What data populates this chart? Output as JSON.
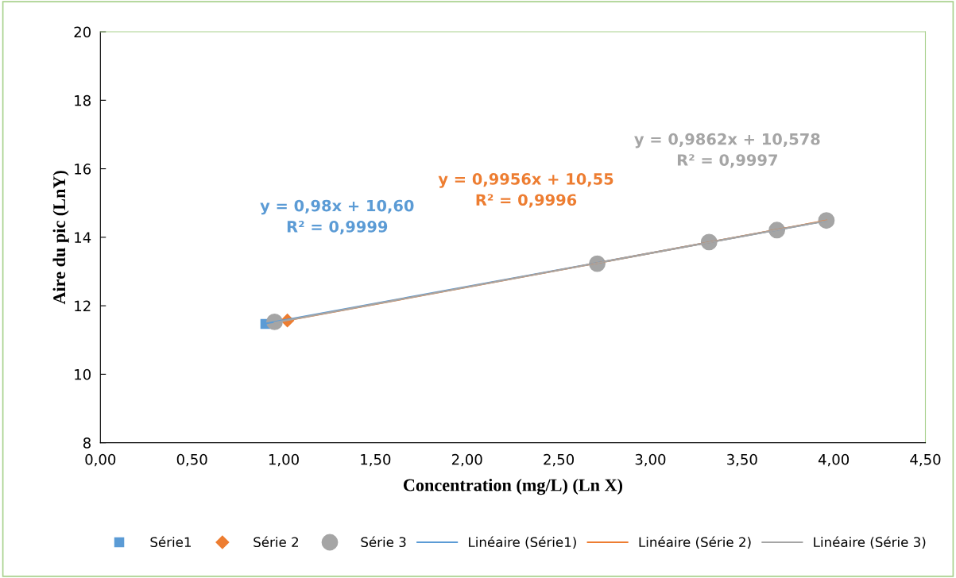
{
  "chart_data": {
    "type": "scatter",
    "xlabel": "Concentration (mg/L) (Ln X)",
    "ylabel": "Aire du pic (LnY)",
    "xlim": [
      0,
      4.5
    ],
    "ylim": [
      8,
      20
    ],
    "xticks": [
      {
        "value": 0,
        "label": "0,00"
      },
      {
        "value": 0.5,
        "label": "0,50"
      },
      {
        "value": 1,
        "label": "1,00"
      },
      {
        "value": 1.5,
        "label": "1,50"
      },
      {
        "value": 2,
        "label": "2,00"
      },
      {
        "value": 2.5,
        "label": "2,50"
      },
      {
        "value": 3,
        "label": "3,00"
      },
      {
        "value": 3.5,
        "label": "3,50"
      },
      {
        "value": 4,
        "label": "4,00"
      },
      {
        "value": 4.5,
        "label": "4,50"
      }
    ],
    "yticks": [
      8,
      10,
      12,
      14,
      16,
      18,
      20
    ],
    "grid": false,
    "legend": "bottom",
    "series": [
      {
        "name": "Série1",
        "color": "#5b9bd5",
        "marker": "square",
        "x": [
          0.9
        ],
        "values": [
          11.47
        ]
      },
      {
        "name": "Série 2",
        "color": "#ed7d31",
        "marker": "diamond",
        "x": [
          1.02
        ],
        "values": [
          11.57
        ]
      },
      {
        "name": "Série 3",
        "color": "#a5a5a5",
        "marker": "circle",
        "x": [
          0.95,
          2.71,
          3.32,
          3.69,
          3.96
        ],
        "values": [
          11.53,
          13.23,
          13.86,
          14.21,
          14.49
        ]
      },
      {
        "name": "Linéaire (Série1)",
        "type": "line",
        "color": "#5b9bd5",
        "x": [
          0.9,
          3.96
        ],
        "values": [
          11.48,
          14.48
        ]
      },
      {
        "name": "Linéaire (Série 2)",
        "type": "line",
        "color": "#ed7d31",
        "x": [
          1.02,
          3.96
        ],
        "values": [
          11.57,
          14.49
        ]
      },
      {
        "name": "Linéaire (Série 3)",
        "type": "line",
        "color": "#a5a5a5",
        "x": [
          0.95,
          3.96
        ],
        "values": [
          11.51,
          14.48
        ]
      }
    ],
    "annotations": [
      "y = 0,98x + 10,60\nR² = 0,9999",
      "y = 0,9956x + 10,55\nR² = 0,9996",
      "y = 0,9862x + 10,578\nR² = 0,9997"
    ]
  }
}
